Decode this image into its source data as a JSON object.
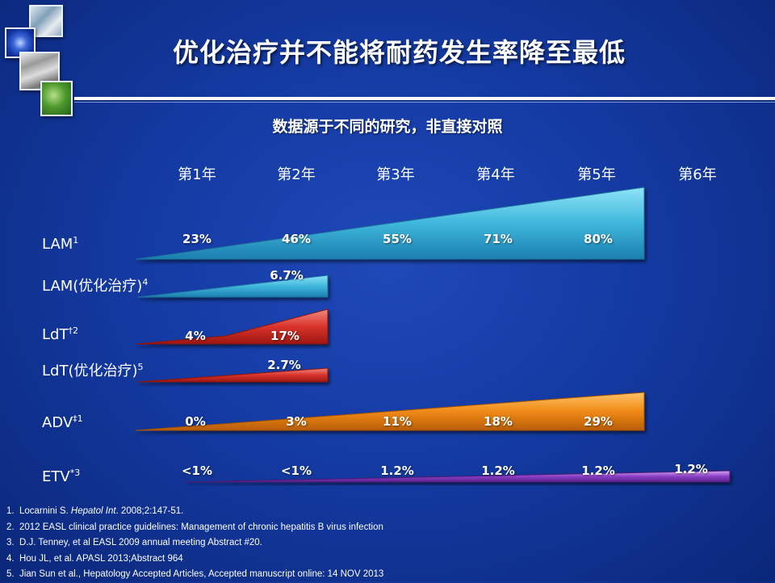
{
  "title": "优化治疗并不能将耐药发生率降至最低",
  "subtitle": "数据源于不同的研究，非直接对照",
  "years": [
    "第1年",
    "第2年",
    "第3年",
    "第4年",
    "第5年",
    "第6年"
  ],
  "rows": [
    {
      "label": "LAM",
      "sup": "1",
      "values": [
        "23%",
        "46%",
        "55%",
        "71%",
        "80%"
      ],
      "color": "#3fb7dc"
    },
    {
      "label": "LAM(优化治疗)",
      "sup": "4",
      "values": [
        "6.7%"
      ],
      "color": "#3fb7dc"
    },
    {
      "label": "LdT",
      "sup": "†2",
      "values": [
        "4%",
        "17%"
      ],
      "color": "#d9332b"
    },
    {
      "label": "LdT(优化治疗)",
      "sup": "5",
      "values": [
        "2.7%"
      ],
      "color": "#d9332b"
    },
    {
      "label": "ADV",
      "sup": "‡1",
      "values": [
        "0%",
        "3%",
        "11%",
        "18%",
        "29%"
      ],
      "color": "#f08a16"
    },
    {
      "label": "ETV",
      "sup": "*3",
      "values": [
        "<1%",
        "<1%",
        "1.2%",
        "1.2%",
        "1.2%",
        "1.2%"
      ],
      "color": "#8c3fc4"
    }
  ],
  "references": [
    {
      "num": "1.",
      "pre": "Locarnini S. ",
      "italic": "Hepatol Int",
      "post": ". 2008;2:147-51."
    },
    {
      "num": "2.",
      "pre": "2012 EASL clinical practice guidelines: Management of chronic hepatitis  B virus infection",
      "italic": "",
      "post": ""
    },
    {
      "num": "3.",
      "pre": "D.J. Tenney, et al EASL 2009 annual meeting Abstract #20.",
      "italic": "",
      "post": ""
    },
    {
      "num": "4.",
      "pre": "Hou JL, et al. APASL 2013;Abstract  964",
      "italic": "",
      "post": ""
    },
    {
      "num": "5.",
      "pre": "Jian Sun et al., Hepatology Accepted Articles, Accepted manuscript online: 14 NOV 2013",
      "italic": "",
      "post": ""
    }
  ]
}
